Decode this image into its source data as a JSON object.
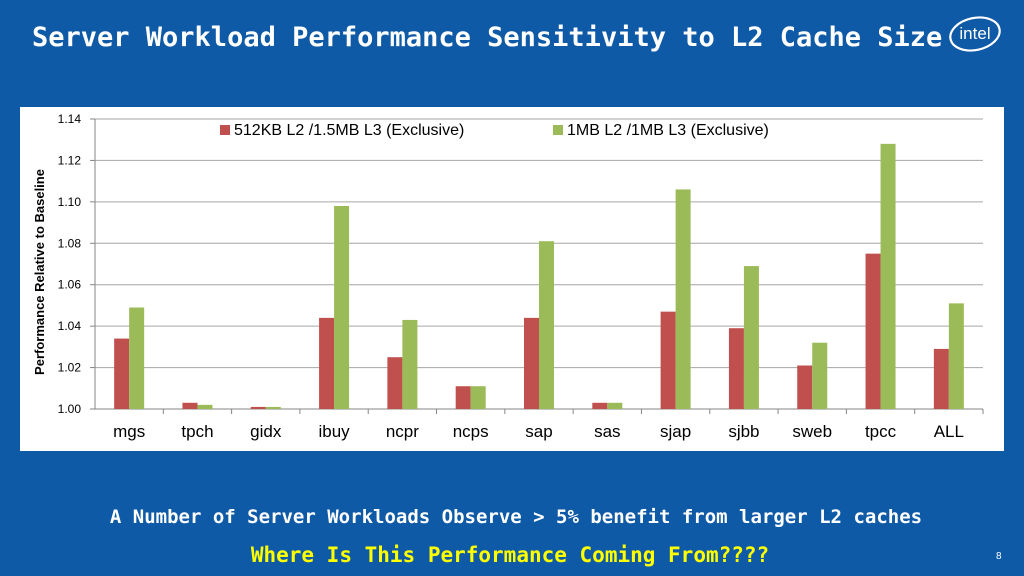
{
  "slide": {
    "title": "Server Workload Performance Sensitivity to L2 Cache Size",
    "logo_text": "intel",
    "footer_line_1": "A Number of Server Workloads Observe > 5% benefit from larger L2 caches",
    "footer_line_2": "Where Is This Performance Coming From????",
    "page_number": "8"
  },
  "colors": {
    "background": "#0f5aa6",
    "series_1": "#c0504d",
    "series_2": "#9bbb59",
    "footer_highlight": "#ffff00"
  },
  "chart_data": {
    "type": "bar",
    "title": "",
    "xlabel": "",
    "ylabel": "Performance Relative to Baseline",
    "ylim": [
      1.0,
      1.14
    ],
    "yticks": [
      "1.00",
      "1.02",
      "1.04",
      "1.06",
      "1.08",
      "1.10",
      "1.12",
      "1.14"
    ],
    "grid": true,
    "legend_position": "top",
    "categories": [
      "mgs",
      "tpch",
      "gidx",
      "ibuy",
      "ncpr",
      "ncps",
      "sap",
      "sas",
      "sjap",
      "sjbb",
      "sweb",
      "tpcc",
      "ALL"
    ],
    "series": [
      {
        "name": "512KB L2 /1.5MB L3 (Exclusive)",
        "color": "#c0504d",
        "values": [
          1.034,
          1.003,
          1.001,
          1.044,
          1.025,
          1.011,
          1.044,
          1.003,
          1.047,
          1.039,
          1.021,
          1.075,
          1.029
        ]
      },
      {
        "name": "1MB L2 /1MB L3 (Exclusive)",
        "color": "#9bbb59",
        "values": [
          1.049,
          1.002,
          1.001,
          1.098,
          1.043,
          1.011,
          1.081,
          1.003,
          1.106,
          1.069,
          1.032,
          1.128,
          1.051
        ]
      }
    ]
  }
}
